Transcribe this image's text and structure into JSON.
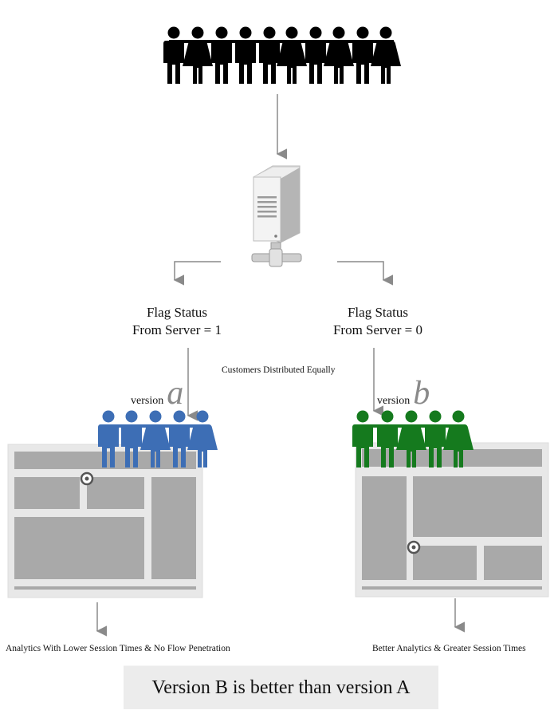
{
  "server_node": {
    "left_flag": {
      "line1": "Flag Status",
      "line2": "From Server = 1"
    },
    "right_flag": {
      "line1": "Flag Status",
      "line2": "From Server = 0"
    }
  },
  "distribution_note": "Customers Distributed Equally",
  "version_a": {
    "word": "version",
    "letter": "a",
    "result": "Analytics With Lower Session Times & No Flow Penetration",
    "color": "#3d6eb5"
  },
  "version_b": {
    "word": "version",
    "letter": "b",
    "result": "Better Analytics & Greater Session Times",
    "color": "#157a1e"
  },
  "conclusion": "Version B is better than version A",
  "colors": {
    "crowd": "#000000",
    "arrow": "#8a8a8a",
    "wireframe_bg": "#e8e8e8",
    "wireframe_block": "#a9a9a9"
  },
  "icons": [
    "crowd-icon",
    "server-icon",
    "people-group-icon",
    "wireframe-page-icon",
    "cursor-target-icon",
    "arrow-down-icon"
  ]
}
